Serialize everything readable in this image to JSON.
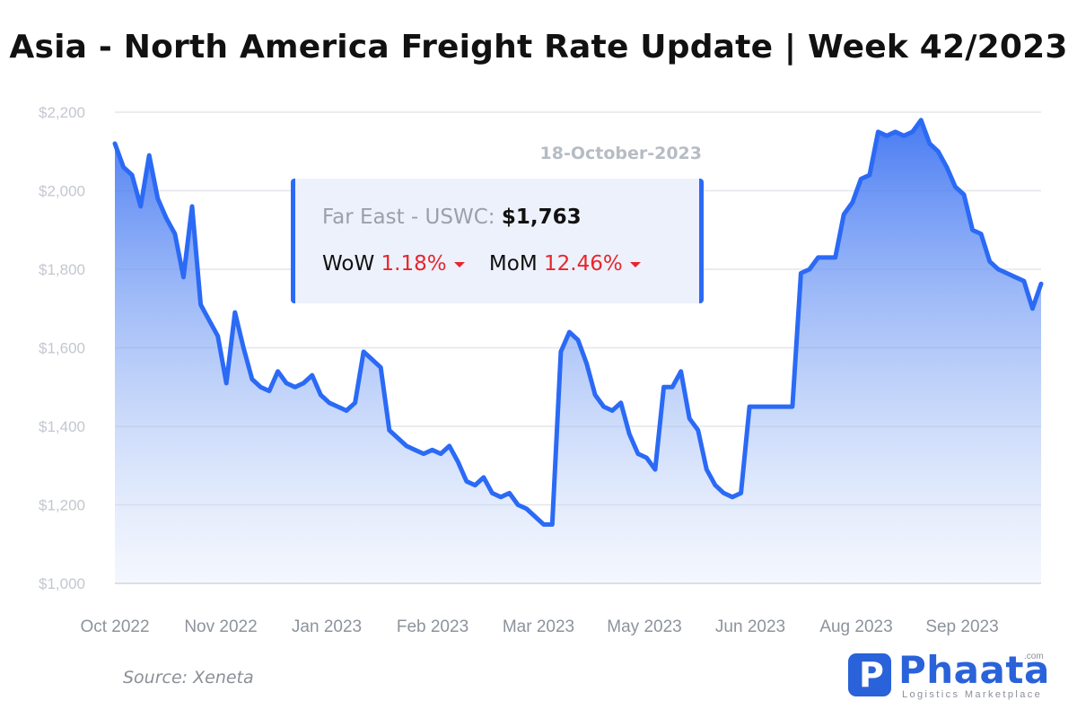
{
  "title": "Asia - North America Freight Rate Update | Week 42/2023",
  "annotation": {
    "date": "18-October-2023",
    "route_label": "Far East - USWC:",
    "route_value": "$1,763",
    "wow_label": "WoW",
    "wow_value": "1.18%",
    "mom_label": "MoM",
    "mom_value": "12.46%"
  },
  "source": "Source: Xeneta",
  "brand": {
    "name": "Phaata",
    "tagline": "Logistics Marketplace",
    "domain": ".com",
    "mark": "P"
  },
  "colors": {
    "line": "#2b6af5",
    "fill_top": "#3f74f2",
    "grid": "#e3e6eb",
    "negative": "#e8252b",
    "brand": "#2a62d9"
  },
  "chart_data": {
    "type": "area",
    "ylim": [
      1000,
      2200
    ],
    "yticks": [
      1000,
      1200,
      1400,
      1600,
      1800,
      2000,
      2200
    ],
    "ytick_labels": [
      "$1,000",
      "$1,200",
      "$1,400",
      "$1,600",
      "$1,800",
      "$2,000",
      "$2,200"
    ],
    "xtick_labels": [
      "Oct 2022",
      "Nov 2022",
      "Jan 2023",
      "Feb 2023",
      "Mar 2023",
      "May 2023",
      "Jun 2023",
      "Aug 2023",
      "Sep 2023"
    ],
    "grid": true,
    "series": [
      {
        "values": [
          2120,
          2060,
          2040,
          1960,
          2090,
          1980,
          1930,
          1890,
          1780,
          1960,
          1710,
          1670,
          1630,
          1510,
          1690,
          1600,
          1520,
          1500,
          1490,
          1540,
          1510,
          1500,
          1510,
          1530,
          1480,
          1460,
          1450,
          1440,
          1460,
          1590,
          1570,
          1550,
          1390,
          1370,
          1350,
          1340,
          1330,
          1340,
          1330,
          1350,
          1310,
          1260,
          1250,
          1270,
          1230,
          1220,
          1230,
          1200,
          1190,
          1170,
          1150,
          1150,
          1590,
          1640,
          1620,
          1560,
          1480,
          1450,
          1440,
          1460,
          1380,
          1330,
          1320,
          1290,
          1500,
          1500,
          1540,
          1420,
          1390,
          1290,
          1250,
          1230,
          1220,
          1230,
          1450,
          1450,
          1450,
          1450,
          1450,
          1450,
          1790,
          1800,
          1830,
          1830,
          1830,
          1940,
          1970,
          2030,
          2040,
          2150,
          2140,
          2150,
          2140,
          2150,
          2180,
          2120,
          2100,
          2060,
          2010,
          1990,
          1900,
          1890,
          1820,
          1800,
          1790,
          1780,
          1770,
          1700,
          1763
        ]
      }
    ]
  }
}
